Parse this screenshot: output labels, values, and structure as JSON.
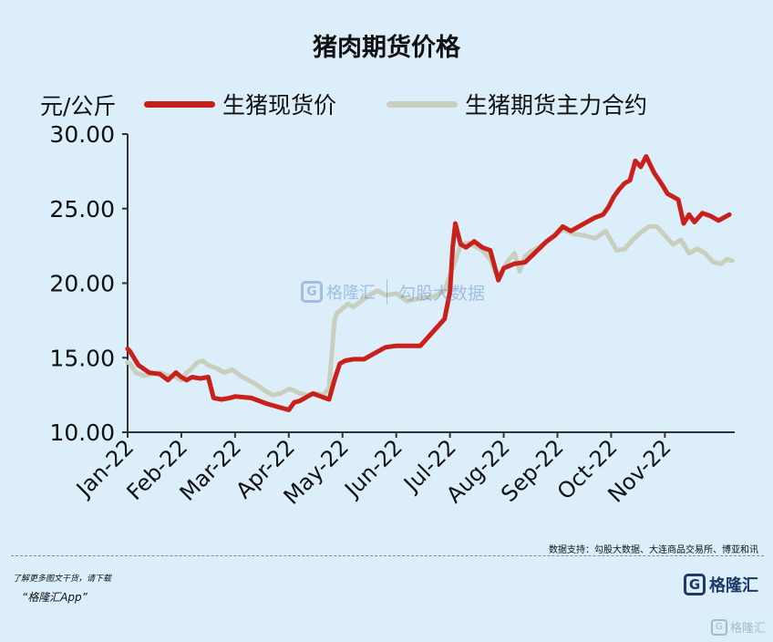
{
  "title": "猪肉期货价格",
  "unit": "元/公斤",
  "source": "数据支持：勾股大数据、大连商品交易所、博亚和讯",
  "watermark": {
    "brand": "格隆汇",
    "sub": "勾股大数据"
  },
  "footer": {
    "promo_line1": "了解更多图文干货，请下载",
    "promo_line2": "“格隆汇App”",
    "brand_letter": "G",
    "brand_name": "格隆汇",
    "corner_brand": "格隆汇"
  },
  "colors": {
    "spot": "#c9201c",
    "futures": "#c8cfbd",
    "axis": "#333333"
  },
  "chart_data": {
    "type": "line",
    "ylim": [
      10,
      30
    ],
    "yticks": [
      "30.00",
      "25.00",
      "20.00",
      "15.00",
      "10.00"
    ],
    "ytick_values": [
      30,
      25,
      20,
      15,
      10
    ],
    "categories": [
      "Jan-22",
      "Feb-22",
      "Mar-22",
      "Apr-22",
      "May-22",
      "Jun-22",
      "Jul-22",
      "Aug-22",
      "Sep-22",
      "Oct-22",
      "Nov-22"
    ],
    "x_range": [
      0,
      11.3
    ],
    "series": [
      {
        "name": "生猪现货价",
        "x": [
          0,
          0.05,
          0.2,
          0.4,
          0.6,
          0.75,
          0.9,
          1.0,
          1.1,
          1.2,
          1.35,
          1.5,
          1.6,
          1.75,
          1.9,
          2.0,
          2.3,
          2.6,
          2.8,
          3.0,
          3.1,
          3.2,
          3.3,
          3.45,
          3.6,
          3.75,
          3.85,
          3.95,
          4.05,
          4.2,
          4.4,
          4.6,
          4.8,
          5.0,
          5.2,
          5.45,
          5.7,
          5.9,
          6.0,
          6.05,
          6.1,
          6.2,
          6.3,
          6.45,
          6.6,
          6.75,
          6.9,
          7.0,
          7.2,
          7.4,
          7.6,
          7.8,
          7.95,
          8.1,
          8.25,
          8.5,
          8.7,
          8.85,
          8.95,
          9.05,
          9.15,
          9.25,
          9.35,
          9.45,
          9.55,
          9.65,
          9.8,
          9.95,
          10.05,
          10.15,
          10.25,
          10.35,
          10.45,
          10.55,
          10.7,
          10.85,
          11.0,
          11.1,
          11.2
        ],
        "values": [
          15.6,
          15.4,
          14.5,
          14.0,
          13.9,
          13.5,
          14.0,
          13.7,
          13.5,
          13.7,
          13.6,
          13.7,
          12.3,
          12.2,
          12.3,
          12.4,
          12.3,
          11.9,
          11.7,
          11.5,
          12.0,
          12.1,
          12.3,
          12.6,
          12.4,
          12.2,
          13.5,
          14.6,
          14.8,
          14.9,
          14.9,
          15.3,
          15.7,
          15.8,
          15.8,
          15.8,
          16.8,
          17.6,
          19.4,
          22.4,
          24.0,
          22.6,
          22.4,
          22.8,
          22.4,
          22.2,
          20.2,
          21.0,
          21.3,
          21.4,
          22.1,
          22.8,
          23.2,
          23.8,
          23.5,
          24.0,
          24.4,
          24.6,
          25.1,
          25.8,
          26.3,
          26.7,
          26.9,
          28.2,
          27.8,
          28.5,
          27.4,
          26.6,
          26.0,
          25.8,
          25.6,
          24.0,
          24.6,
          24.1,
          24.7,
          24.5,
          24.2,
          24.4,
          24.6
        ],
        "color": "#c9201c"
      },
      {
        "name": "生猪期货主力合约",
        "x": [
          0,
          0.05,
          0.15,
          0.3,
          0.45,
          0.6,
          0.75,
          0.9,
          1.0,
          1.1,
          1.2,
          1.3,
          1.4,
          1.5,
          1.65,
          1.8,
          1.95,
          2.1,
          2.25,
          2.4,
          2.55,
          2.7,
          2.85,
          3.0,
          3.1,
          3.2,
          3.35,
          3.5,
          3.65,
          3.75,
          3.85,
          3.9,
          4.0,
          4.1,
          4.2,
          4.35,
          4.5,
          4.65,
          4.8,
          5.0,
          5.2,
          5.45,
          5.7,
          5.9,
          6.0,
          6.1,
          6.2,
          6.35,
          6.45,
          6.6,
          6.75,
          6.85,
          6.95,
          7.0,
          7.1,
          7.2,
          7.3,
          7.4,
          7.5,
          7.65,
          7.8,
          7.95,
          8.1,
          8.3,
          8.5,
          8.7,
          8.9,
          9.1,
          9.25,
          9.4,
          9.55,
          9.7,
          9.85,
          10.0,
          10.15,
          10.3,
          10.45,
          10.6,
          10.75,
          10.9,
          11.05,
          11.15,
          11.25
        ],
        "values": [
          14.7,
          14.6,
          14.0,
          13.8,
          13.9,
          14.0,
          13.8,
          13.7,
          13.5,
          14.0,
          14.3,
          14.7,
          14.8,
          14.5,
          14.3,
          14.0,
          14.2,
          13.8,
          13.5,
          13.2,
          12.8,
          12.5,
          12.6,
          12.9,
          12.8,
          12.6,
          12.5,
          12.6,
          12.5,
          13.0,
          17.5,
          18.0,
          18.3,
          18.6,
          18.4,
          18.8,
          19.2,
          19.5,
          19.2,
          19.3,
          18.8,
          19.0,
          19.1,
          19.5,
          20.5,
          21.5,
          22.6,
          22.7,
          22.5,
          22.2,
          21.6,
          20.7,
          20.5,
          21.0,
          21.6,
          22.0,
          20.8,
          21.8,
          22.1,
          22.4,
          22.8,
          23.2,
          23.6,
          23.3,
          23.2,
          23.0,
          23.5,
          22.2,
          22.3,
          22.9,
          23.4,
          23.8,
          23.8,
          23.2,
          22.6,
          22.9,
          22.0,
          22.3,
          22.0,
          21.4,
          21.3,
          21.6,
          21.5
        ],
        "color": "#c8cfbd"
      }
    ]
  }
}
